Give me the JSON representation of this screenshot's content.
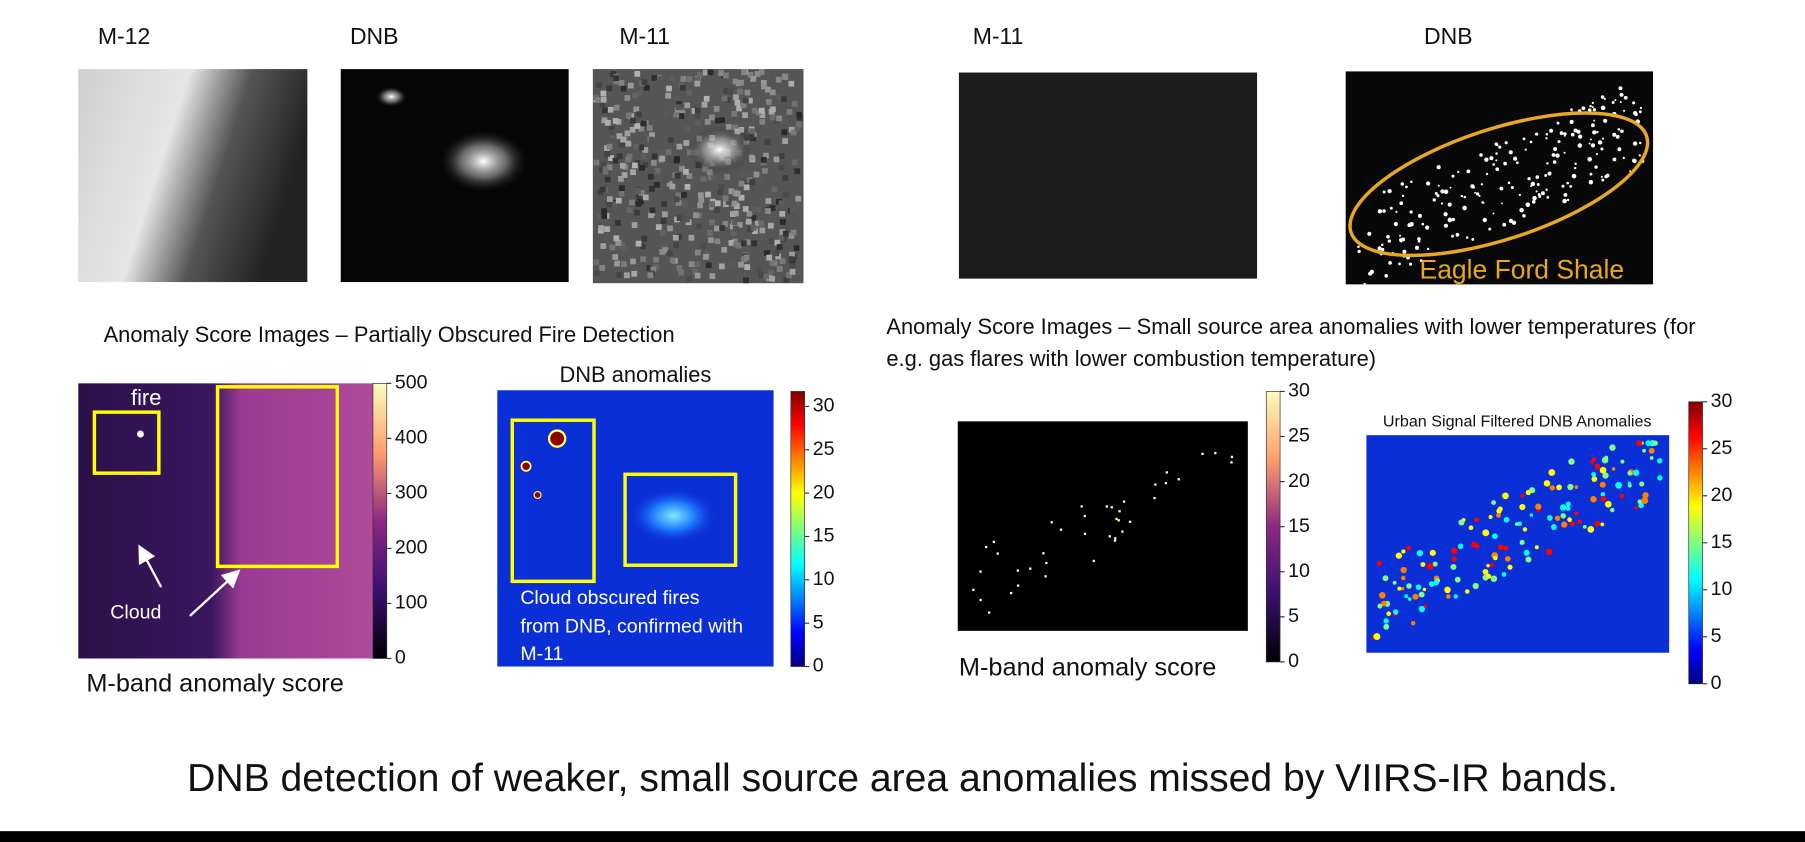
{
  "top_labels": [
    "M-12",
    "DNB",
    "M-11",
    "M-11",
    "DNB"
  ],
  "overlay_label": "Eagle Ford Shale",
  "left_section": {
    "title": "Anomaly Score Images – Partially Obscured Fire Detection",
    "m_band": {
      "caption": "M-band anomaly score",
      "fire_label": "fire",
      "cloud_label": "Cloud",
      "colorbar_ticks": [
        0,
        100,
        200,
        300,
        400,
        500
      ]
    },
    "dnb": {
      "title": "DNB anomalies",
      "note_lines": [
        "Cloud obscured fires",
        "from DNB, confirmed with",
        "M-11"
      ],
      "colorbar_ticks": [
        0,
        5,
        10,
        15,
        20,
        25,
        30
      ]
    }
  },
  "right_section": {
    "title_lines": [
      "Anomaly Score Images – Small source area anomalies with lower temperatures (for",
      "e.g. gas flares with lower combustion temperature)"
    ],
    "m_band": {
      "caption": "M-band anomaly score",
      "colorbar_ticks": [
        0,
        5,
        10,
        15,
        20,
        25,
        30
      ]
    },
    "dnb": {
      "title": "Urban Signal Filtered DNB Anomalies",
      "colorbar_ticks": [
        0,
        5,
        10,
        15,
        20,
        25,
        30
      ]
    }
  },
  "footer": "DNB detection of weaker, small source area anomalies missed by VIIRS-IR bands."
}
